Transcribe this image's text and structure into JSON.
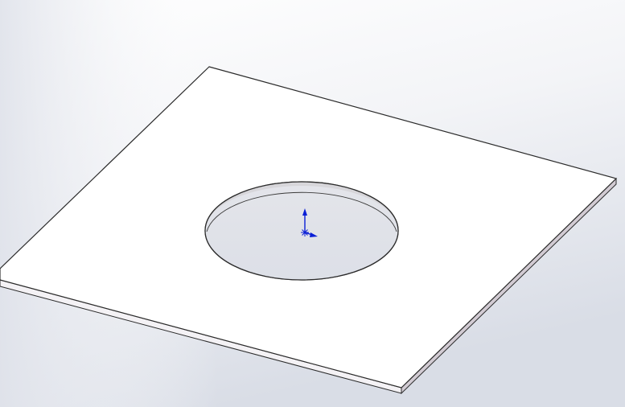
{
  "viewport": {
    "background_top": "#ffffff",
    "background_bottom": "#d9dde6",
    "background_left": "#dfe2ea"
  },
  "model": {
    "part": "square-plate-with-circular-hole",
    "plate_face_color": "#ffffff",
    "plate_edge_color": "#2b2b2b",
    "plate_side_color": "#c9c4cc",
    "hole_wall_color": "#d8d8dc"
  },
  "origin_triad": {
    "icon": "origin-triad-icon",
    "color": "#0a1fd6"
  }
}
